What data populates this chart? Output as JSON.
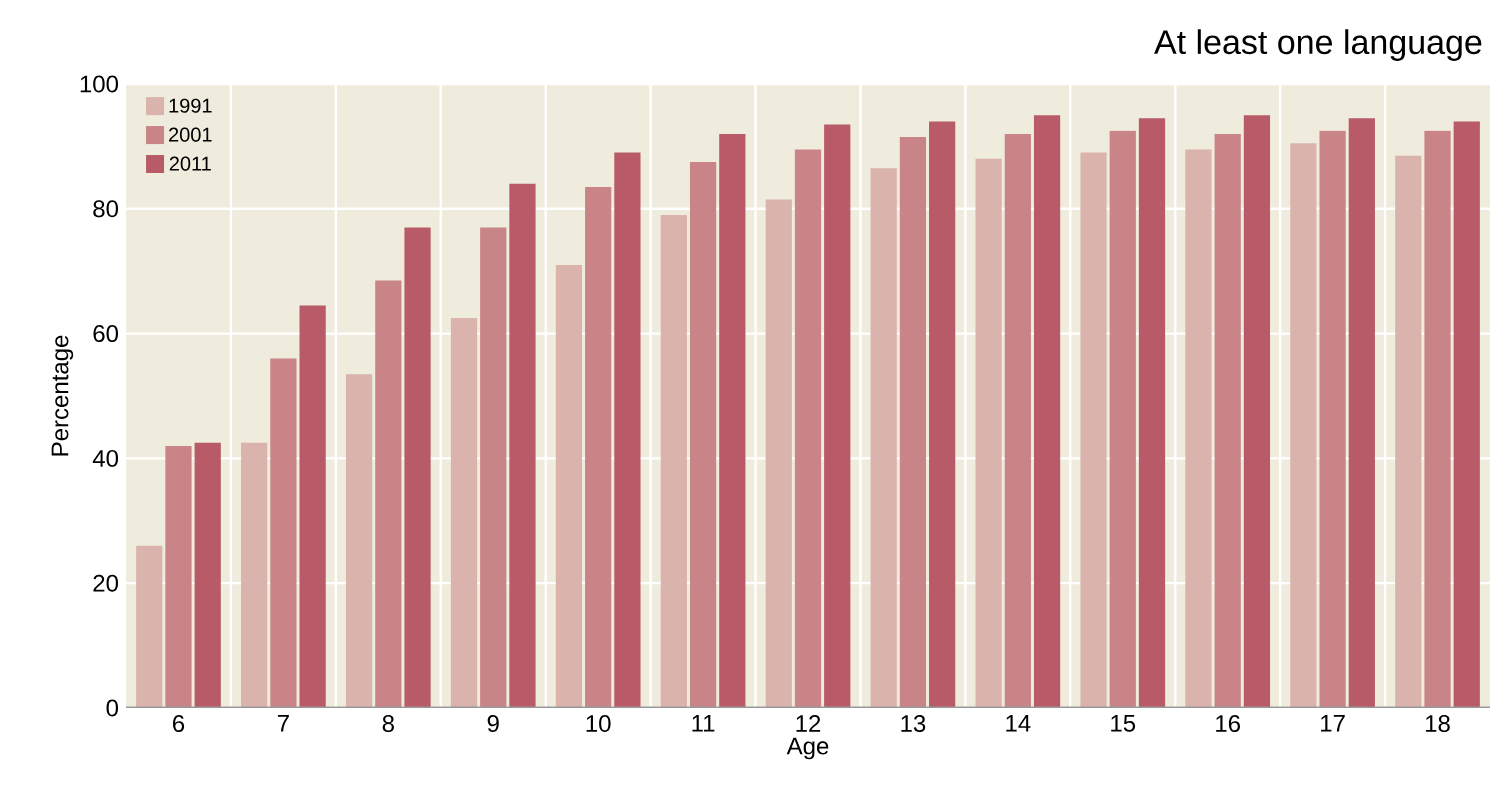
{
  "chart_data": {
    "type": "bar",
    "title": "At least one language",
    "xlabel": "Age",
    "ylabel": "Percentage",
    "categories": [
      "6",
      "7",
      "8",
      "9",
      "10",
      "11",
      "12",
      "13",
      "14",
      "15",
      "16",
      "17",
      "18"
    ],
    "series": [
      {
        "name": "1991",
        "color": "#d9b3ac",
        "values": [
          26,
          42.5,
          53.5,
          62.5,
          71,
          79,
          81.5,
          86.5,
          88,
          89,
          89.5,
          90.5,
          88.5
        ]
      },
      {
        "name": "2001",
        "color": "#c98487",
        "values": [
          42,
          56,
          68.5,
          77,
          83.5,
          87.5,
          89.5,
          91.5,
          92,
          92.5,
          92,
          92.5,
          92.5
        ]
      },
      {
        "name": "2011",
        "color": "#b85a68",
        "values": [
          42.5,
          64.5,
          77,
          84,
          89,
          92,
          93.5,
          94,
          95,
          94.5,
          95,
          94.5,
          94
        ]
      }
    ],
    "ylim": [
      0,
      100
    ],
    "yticks": [
      0,
      20,
      40,
      60,
      80,
      100
    ],
    "grid": true,
    "legend": "top left"
  }
}
